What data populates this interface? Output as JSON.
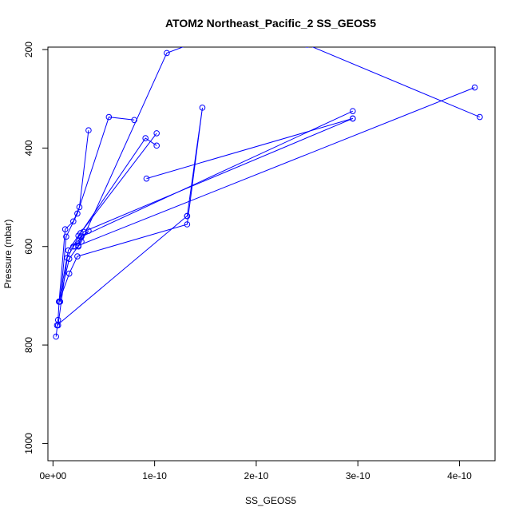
{
  "chart_data": {
    "type": "scatter",
    "title": "ATOM2 Northeast_Pacific_2 SS_GEOS5",
    "xlabel": "SS_GEOS5",
    "ylabel": "Pressure (mbar)",
    "xlim": [
      -5e-12,
      4.35e-10
    ],
    "ylim": [
      1035,
      195
    ],
    "y_reversed": true,
    "x_ticks": [
      {
        "value": 0,
        "label": "0e+00"
      },
      {
        "value": 1e-10,
        "label": "1e-10"
      },
      {
        "value": 2e-10,
        "label": "2e-10"
      },
      {
        "value": 3e-10,
        "label": "3e-10"
      },
      {
        "value": 4e-10,
        "label": "4e-10"
      }
    ],
    "y_ticks": [
      {
        "value": 200,
        "label": "200"
      },
      {
        "value": 400,
        "label": "400"
      },
      {
        "value": 600,
        "label": "600"
      },
      {
        "value": 800,
        "label": "800"
      },
      {
        "value": 1000,
        "label": "1000"
      }
    ],
    "grid": false,
    "legend": "none",
    "series_color": "#0000ff",
    "series": [
      {
        "x": [
          3e-12,
          5e-12,
          6e-12,
          1.2e-11,
          2e-11,
          2.6e-11,
          3.5e-11
        ],
        "y": [
          783,
          749,
          712,
          565,
          549,
          520,
          364
        ]
      },
      {
        "x": [
          7e-12,
          1.3e-11,
          2.4e-11,
          5.5e-11,
          8e-11
        ],
        "y": [
          712,
          580,
          533,
          337,
          343
        ]
      },
      {
        "x": [
          6e-12,
          1.6e-11,
          2.8e-11,
          1.12e-10,
          1.6e-10,
          2.5e-10,
          4.2e-10
        ],
        "y": [
          712,
          625,
          590,
          207,
          170,
          190,
          337
        ]
      },
      {
        "x": [
          5e-12,
          1.4e-11,
          2.7e-11,
          9.1e-11,
          1.02e-10
        ],
        "y": [
          760,
          623,
          573,
          380,
          395
        ]
      },
      {
        "x": [
          6e-12,
          1.5e-11,
          2.5e-11,
          1.02e-10
        ],
        "y": [
          712,
          608,
          578,
          370
        ]
      },
      {
        "x": [
          6e-12,
          1.6e-11,
          2.4e-11,
          1.32e-10,
          1.47e-10,
          1.32e-10
        ],
        "y": [
          712,
          655,
          620,
          555,
          318,
          538
        ]
      },
      {
        "x": [
          4e-12,
          1.32e-10
        ],
        "y": [
          760,
          538
        ]
      },
      {
        "x": [
          2e-11,
          2.8e-11,
          2.95e-10
        ],
        "y": [
          600,
          580,
          325
        ]
      },
      {
        "x": [
          2.5e-11,
          3e-11,
          2.95e-10
        ],
        "y": [
          600,
          570,
          340
        ]
      },
      {
        "x": [
          2.5e-11,
          4.15e-10
        ],
        "y": [
          598,
          277
        ]
      },
      {
        "x": [
          9.2e-11,
          2.95e-10
        ],
        "y": [
          462,
          340
        ]
      },
      {
        "x": [
          2.2e-11,
          3.5e-11
        ],
        "y": [
          600,
          568
        ]
      }
    ]
  }
}
